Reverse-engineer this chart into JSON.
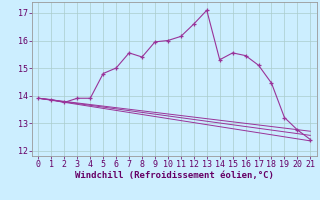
{
  "xlabel": "Windchill (Refroidissement éolien,°C)",
  "background_color": "#cceeff",
  "line_color": "#993399",
  "xlim": [
    -0.5,
    21.5
  ],
  "ylim": [
    11.8,
    17.4
  ],
  "yticks": [
    12,
    13,
    14,
    15,
    16,
    17
  ],
  "xticks": [
    0,
    1,
    2,
    3,
    4,
    5,
    6,
    7,
    8,
    9,
    10,
    11,
    12,
    13,
    14,
    15,
    16,
    17,
    18,
    19,
    20,
    21
  ],
  "series": [
    [
      0,
      13.9
    ],
    [
      1,
      13.85
    ],
    [
      2,
      13.75
    ],
    [
      3,
      13.9
    ],
    [
      4,
      13.9
    ],
    [
      5,
      14.8
    ],
    [
      6,
      15.0
    ],
    [
      7,
      15.55
    ],
    [
      8,
      15.4
    ],
    [
      9,
      15.95
    ],
    [
      10,
      16.0
    ],
    [
      11,
      16.15
    ],
    [
      12,
      16.6
    ],
    [
      13,
      17.1
    ],
    [
      14,
      15.3
    ],
    [
      15,
      15.55
    ],
    [
      16,
      15.45
    ],
    [
      17,
      15.1
    ],
    [
      18,
      14.45
    ],
    [
      19,
      13.2
    ],
    [
      20,
      12.75
    ],
    [
      21,
      12.4
    ]
  ],
  "line1": [
    [
      0,
      13.9
    ],
    [
      21,
      12.35
    ]
  ],
  "line2": [
    [
      0,
      13.9
    ],
    [
      21,
      12.55
    ]
  ],
  "line3": [
    [
      0,
      13.9
    ],
    [
      21,
      12.7
    ]
  ],
  "xlabel_fontsize": 6.5,
  "tick_fontsize": 6,
  "grid_color": "#aacccc"
}
